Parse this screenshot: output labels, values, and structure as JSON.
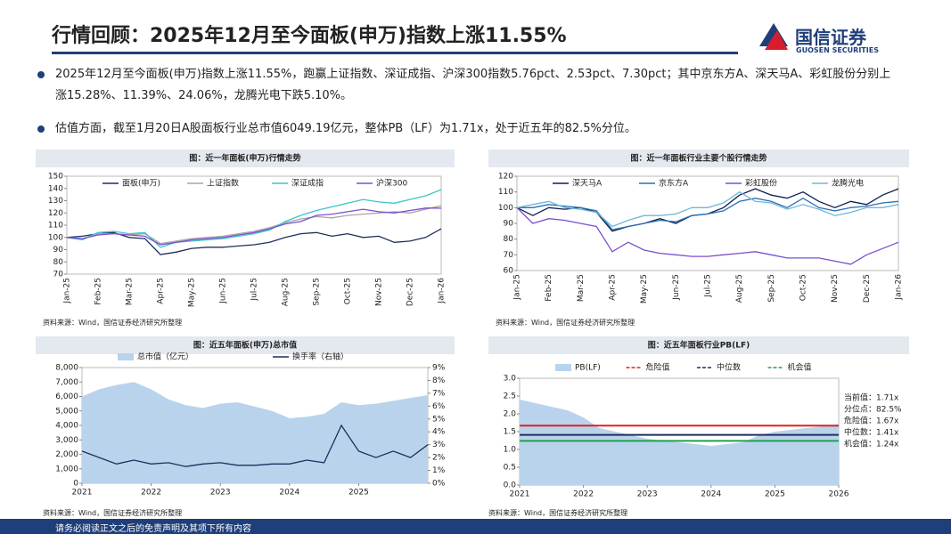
{
  "header": {
    "title": "行情回顾：2025年12月至今面板(申万)指数上涨11.55%",
    "logo": "国信证券",
    "logo_en": "GUOSEN SECURITIES"
  },
  "bullets": [
    "2025年12月至今面板(申万)指数上涨11.55%，跑赢上证指数、深证成指、沪深300指数5.76pct、2.53pct、7.30pct；其中京东方A、深天马A、彩虹股份分别上涨15.28%、11.39%、24.06%，龙腾光电下跌5.10%。",
    "估值方面，截至1月20日A股面板行业总市值6049.19亿元，整体PB（LF）为1.71x，处于近五年的82.5%分位。"
  ],
  "footer": "请务必阅读正文之后的免责声明及其项下所有内容",
  "chart_data": [
    {
      "type": "line",
      "title": "图：近一年面板(申万)行情走势",
      "source": "资料来源：Wind，国信证券经济研究所整理",
      "categories": [
        "Jan-25",
        null,
        "Feb-25",
        null,
        "Mar-25",
        null,
        "Apr-25",
        null,
        "May-25",
        null,
        "Jun-25",
        null,
        "Jul-25",
        null,
        "Aug-25",
        null,
        "Sep-25",
        null,
        "Oct-25",
        null,
        "Nov-25",
        null,
        "Dec-25",
        null,
        "Jan-26"
      ],
      "ylim": [
        70,
        150
      ],
      "yticks": [
        70,
        80,
        90,
        100,
        110,
        120,
        130,
        140,
        150
      ],
      "series": [
        {
          "name": "面板(申万)",
          "color": "#1f2f5c",
          "values": [
            100,
            101,
            103,
            104,
            100,
            99,
            86,
            88,
            91,
            92,
            92,
            93,
            94,
            96,
            100,
            103,
            104,
            101,
            103,
            100,
            101,
            96,
            97,
            100,
            107
          ]
        },
        {
          "name": "上证指数",
          "color": "#a6a6a6",
          "values": [
            100,
            99,
            103,
            103,
            102,
            103,
            95,
            97,
            99,
            100,
            101,
            103,
            105,
            108,
            112,
            115,
            117,
            116,
            118,
            119,
            120,
            121,
            120,
            123,
            126
          ]
        },
        {
          "name": "深证成指",
          "color": "#3cc6c6",
          "values": [
            100,
            98,
            104,
            105,
            103,
            104,
            92,
            96,
            97,
            98,
            99,
            101,
            103,
            106,
            113,
            118,
            122,
            125,
            128,
            131,
            129,
            128,
            131,
            134,
            139
          ]
        },
        {
          "name": "沪深300",
          "color": "#7b4fd1",
          "values": [
            100,
            99,
            102,
            103,
            102,
            101,
            94,
            96,
            98,
            99,
            100,
            102,
            104,
            107,
            111,
            113,
            118,
            119,
            121,
            123,
            121,
            120,
            122,
            124,
            124
          ]
        }
      ]
    },
    {
      "type": "line",
      "title": "图：近一年面板行业主要个股行情走势",
      "source": "资料来源：Wind，国信证券经济研究所整理",
      "categories": [
        "Jan-25",
        null,
        "Feb-25",
        null,
        "Mar-25",
        null,
        "Apr-25",
        null,
        "May-25",
        null,
        "Jun-25",
        null,
        "Jul-25",
        null,
        "Aug-25",
        null,
        "Sep-25",
        null,
        "Oct-25",
        null,
        "Nov-25",
        null,
        "Dec-25",
        null,
        "Jan-26"
      ],
      "ylim": [
        60,
        120
      ],
      "yticks": [
        60,
        70,
        80,
        90,
        100,
        110,
        120
      ],
      "series": [
        {
          "name": "深天马A",
          "color": "#0d1f4d",
          "values": [
            100,
            95,
            100,
            99,
            100,
            97,
            85,
            88,
            90,
            93,
            90,
            95,
            96,
            100,
            108,
            112,
            108,
            106,
            110,
            104,
            100,
            104,
            102,
            108,
            112
          ]
        },
        {
          "name": "京东方A",
          "color": "#2a6fb5",
          "values": [
            100,
            100,
            102,
            101,
            100,
            98,
            86,
            88,
            90,
            92,
            91,
            95,
            96,
            98,
            104,
            106,
            104,
            100,
            106,
            100,
            98,
            100,
            101,
            103,
            104
          ]
        },
        {
          "name": "彩虹股份",
          "color": "#7a4fcf",
          "values": [
            100,
            90,
            93,
            92,
            90,
            88,
            72,
            78,
            73,
            71,
            70,
            69,
            69,
            70,
            71,
            72,
            70,
            68,
            68,
            68,
            66,
            64,
            70,
            74,
            78
          ]
        },
        {
          "name": "龙腾光电",
          "color": "#6fb8d8",
          "values": [
            100,
            102,
            104,
            100,
            99,
            97,
            88,
            92,
            95,
            95,
            96,
            100,
            100,
            103,
            110,
            104,
            103,
            99,
            102,
            99,
            95,
            97,
            100,
            100,
            102
          ]
        }
      ]
    },
    {
      "type": "combo",
      "title": "图：近五年面板(申万)总市值",
      "source": "资料来源：Wind，国信证券经济研究所整理",
      "x": [
        2021,
        2021.25,
        2021.5,
        2021.75,
        2022,
        2022.25,
        2022.5,
        2022.75,
        2023,
        2023.25,
        2023.5,
        2023.75,
        2024,
        2024.25,
        2024.5,
        2024.75,
        2025,
        2025.25,
        2025.5,
        2025.75,
        2026
      ],
      "xlim": [
        2021,
        2026
      ],
      "xticks": [
        2021,
        2022,
        2023,
        2024,
        2025
      ],
      "ylim": [
        0,
        8000
      ],
      "yticks": [
        0,
        {
          "value": 1000,
          "label": "1,000"
        },
        {
          "value": 2000,
          "label": "2,000"
        },
        {
          "value": 3000,
          "label": "3,000"
        },
        {
          "value": 4000,
          "label": "4,000"
        },
        {
          "value": 5000,
          "label": "5,000"
        },
        {
          "value": 6000,
          "label": "6,000"
        },
        {
          "value": 7000,
          "label": "7,000"
        },
        {
          "value": 8000,
          "label": "8,000"
        }
      ],
      "y2lim": [
        0,
        9
      ],
      "y2ticks": [
        {
          "value": 0,
          "label": "0%"
        },
        {
          "value": 1,
          "label": "1%"
        },
        {
          "value": 2,
          "label": "2%"
        },
        {
          "value": 3,
          "label": "3%"
        },
        {
          "value": 4,
          "label": "4%"
        },
        {
          "value": 5,
          "label": "5%"
        },
        {
          "value": 6,
          "label": "6%"
        },
        {
          "value": 7,
          "label": "7%"
        },
        {
          "value": 8,
          "label": "8%"
        },
        {
          "value": 9,
          "label": "9%"
        }
      ],
      "series": [
        {
          "name": "总市值（亿元）",
          "kind": "area",
          "color": "#b9d3ec",
          "values": [
            6000,
            6500,
            6800,
            7000,
            6500,
            5800,
            5400,
            5200,
            5500,
            5600,
            5300,
            5000,
            4500,
            4600,
            4800,
            5600,
            5400,
            5500,
            5700,
            5900,
            6100
          ]
        },
        {
          "name": "换手率（右轴）",
          "kind": "line",
          "axis": "y2",
          "color": "#1f2f5c",
          "values": [
            2.5,
            2.0,
            1.5,
            1.8,
            1.5,
            1.6,
            1.3,
            1.5,
            1.6,
            1.4,
            1.4,
            1.5,
            1.5,
            1.8,
            1.6,
            4.5,
            2.5,
            2.0,
            2.5,
            2.0,
            3.0
          ]
        }
      ]
    },
    {
      "type": "combo",
      "title": "图：近五年面板行业PB(LF)",
      "source": "资料来源：Wind，国信证券经济研究所整理",
      "x": [
        2021,
        2021.25,
        2021.5,
        2021.75,
        2022,
        2022.25,
        2022.5,
        2022.75,
        2023,
        2023.25,
        2023.5,
        2023.75,
        2024,
        2024.25,
        2024.5,
        2024.75,
        2025,
        2025.25,
        2025.5,
        2025.75,
        2026
      ],
      "xlim": [
        2021,
        2026
      ],
      "xticks": [
        2021,
        2022,
        2023,
        2024,
        2025,
        2026
      ],
      "ylim": [
        0,
        3
      ],
      "yticks": [
        {
          "value": 0,
          "label": "0.0"
        },
        0.5,
        {
          "value": 1,
          "label": "1.0"
        },
        1.5,
        {
          "value": 2,
          "label": "2.0"
        },
        2.5,
        {
          "value": 3,
          "label": "3.0"
        }
      ],
      "series": [
        {
          "name": "PB(LF)",
          "kind": "area",
          "color": "#b9d3ec",
          "values": [
            2.4,
            2.3,
            2.2,
            2.1,
            1.9,
            1.6,
            1.5,
            1.4,
            1.3,
            1.25,
            1.2,
            1.15,
            1.1,
            1.15,
            1.2,
            1.4,
            1.5,
            1.55,
            1.6,
            1.65,
            1.71
          ]
        }
      ],
      "reference_lines": [
        {
          "name": "危险值",
          "value": 1.67,
          "color": "#e02020"
        },
        {
          "name": "中位数",
          "value": 1.41,
          "color": "#1f2f5c"
        },
        {
          "name": "机会值",
          "value": 1.24,
          "color": "#20a050"
        }
      ],
      "annotations": [
        "当前值：1.71x",
        "分位点：82.5%",
        "危险值：1.67x",
        "中位数：1.41x",
        "机会值：1.24x"
      ]
    }
  ]
}
